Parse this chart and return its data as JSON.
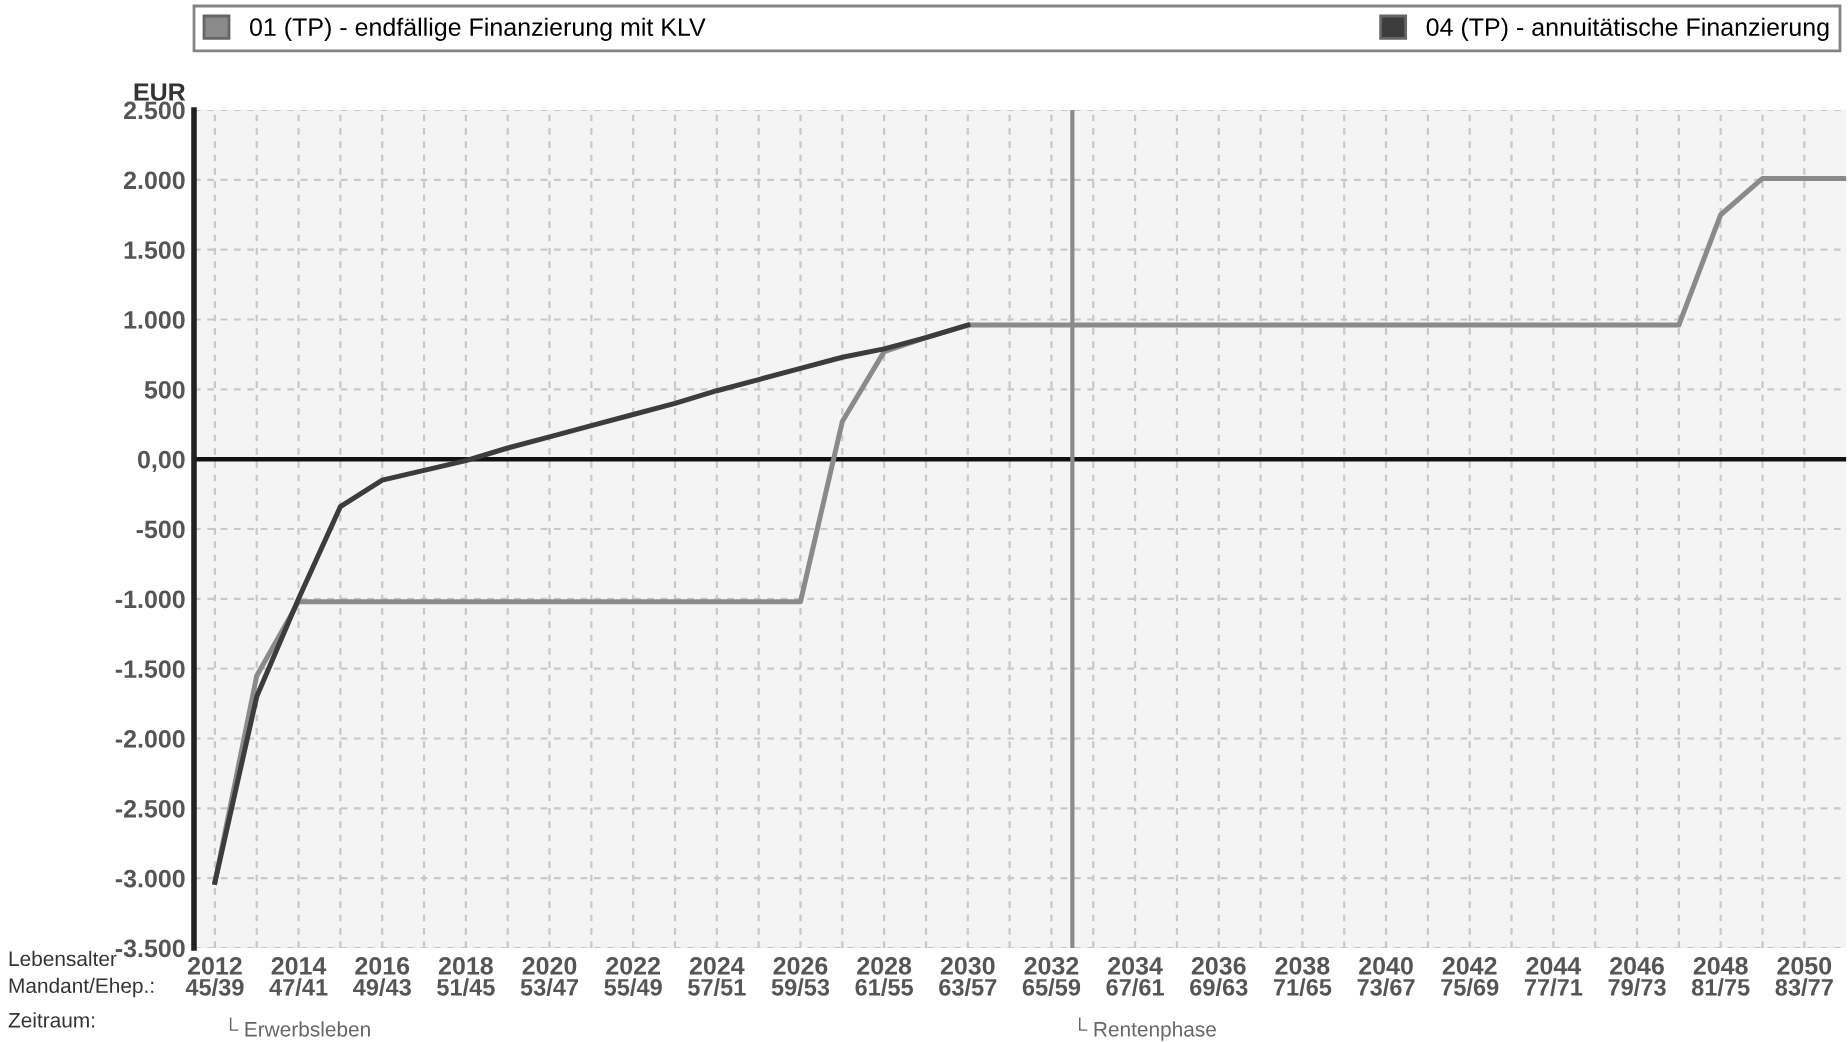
{
  "chart_data": {
    "type": "line",
    "ylabel": "EUR",
    "x": [
      2012,
      2013,
      2014,
      2015,
      2016,
      2017,
      2018,
      2019,
      2020,
      2021,
      2022,
      2023,
      2024,
      2025,
      2026,
      2027,
      2028,
      2029,
      2030,
      2031,
      2032,
      2033,
      2034,
      2035,
      2036,
      2037,
      2038,
      2039,
      2040,
      2041,
      2042,
      2043,
      2044,
      2045,
      2046,
      2047,
      2048,
      2049,
      2050,
      2051
    ],
    "series": [
      {
        "name": "01 (TP) - endfällige Finanzierung mit KLV",
        "color": "#8a8a8a",
        "values": [
          -3030,
          -1550,
          -1020,
          -1020,
          -1020,
          -1020,
          -1020,
          -1020,
          -1020,
          -1020,
          -1020,
          -1020,
          -1020,
          -1020,
          -1020,
          270,
          770,
          870,
          960,
          960,
          960,
          960,
          960,
          960,
          960,
          960,
          960,
          960,
          960,
          960,
          960,
          960,
          960,
          960,
          960,
          960,
          1750,
          2010,
          2010,
          2010
        ]
      },
      {
        "name": "04 (TP) - annuitätische Finanzierung",
        "color": "#3c3c3c",
        "values": [
          -3030,
          -1700,
          -1000,
          -340,
          -150,
          -80,
          -10,
          80,
          160,
          240,
          320,
          400,
          490,
          570,
          650,
          730,
          790,
          870,
          960,
          null,
          null,
          null,
          null,
          null,
          null,
          null,
          null,
          null,
          null,
          null,
          null,
          null,
          null,
          null,
          null,
          null,
          null,
          null,
          null,
          null
        ]
      }
    ],
    "xlim": [
      2011.5,
      2051
    ],
    "xticks": [
      2012,
      {
        "value": 2013,
        "label": null
      },
      2014,
      {
        "value": 2015,
        "label": null
      },
      2016,
      {
        "value": 2017,
        "label": null
      },
      2018,
      {
        "value": 2019,
        "label": null
      },
      2020,
      {
        "value": 2021,
        "label": null
      },
      2022,
      {
        "value": 2023,
        "label": null
      },
      2024,
      {
        "value": 2025,
        "label": null
      },
      2026,
      {
        "value": 2027,
        "label": null
      },
      2028,
      {
        "value": 2029,
        "label": null
      },
      2030,
      {
        "value": 2031,
        "label": null
      },
      2032,
      {
        "value": 2033,
        "label": null
      },
      2034,
      {
        "value": 2035,
        "label": null
      },
      2036,
      {
        "value": 2037,
        "label": null
      },
      2038,
      {
        "value": 2039,
        "label": null
      },
      2040,
      {
        "value": 2041,
        "label": null
      },
      2042,
      {
        "value": 2043,
        "label": null
      },
      2044,
      {
        "value": 2045,
        "label": null
      },
      2046,
      {
        "value": 2047,
        "label": null
      },
      2048,
      {
        "value": 2049,
        "label": null
      },
      2050
    ],
    "ylim": [
      -3500,
      2500
    ],
    "yticks": [
      {
        "value": -3500,
        "label": "-3.500"
      },
      {
        "value": -3000,
        "label": "-3.000"
      },
      {
        "value": -2500,
        "label": "-2.500"
      },
      {
        "value": -2000,
        "label": "-2.000"
      },
      {
        "value": -1500,
        "label": "-1.500"
      },
      {
        "value": -1000,
        "label": "-1.000"
      },
      {
        "value": -500,
        "label": "-500"
      },
      {
        "value": 0,
        "label": "0,00"
      },
      {
        "value": 500,
        "label": "500"
      },
      {
        "value": 1000,
        "label": "1.000"
      },
      {
        "value": 1500,
        "label": "1.500"
      },
      {
        "value": 2000,
        "label": "2.000"
      },
      {
        "value": 2500,
        "label": "2.500"
      }
    ],
    "ref_lines": [
      {
        "axis": "y",
        "value": 0,
        "color": "#111111"
      },
      {
        "axis": "x",
        "value": 2032.5,
        "color": "#8a8a8a"
      }
    ],
    "annotations": [
      "Lebensalter\nMandant/Ehep.:",
      "Zeitraum:",
      "└ Erwerbsleben",
      "└ Rentenphase",
      "45/39",
      "47/41",
      "49/43",
      "51/45",
      "53/47",
      "55/49",
      "57/51",
      "59/53",
      "61/55",
      "63/57",
      "65/59",
      "67/61",
      "69/63",
      "71/65",
      "73/67",
      "75/69",
      "77/71",
      "79/73",
      "81/75",
      "83/77"
    ],
    "grid": true,
    "legend": "top",
    "marker": "none",
    "line_style": "solid"
  }
}
